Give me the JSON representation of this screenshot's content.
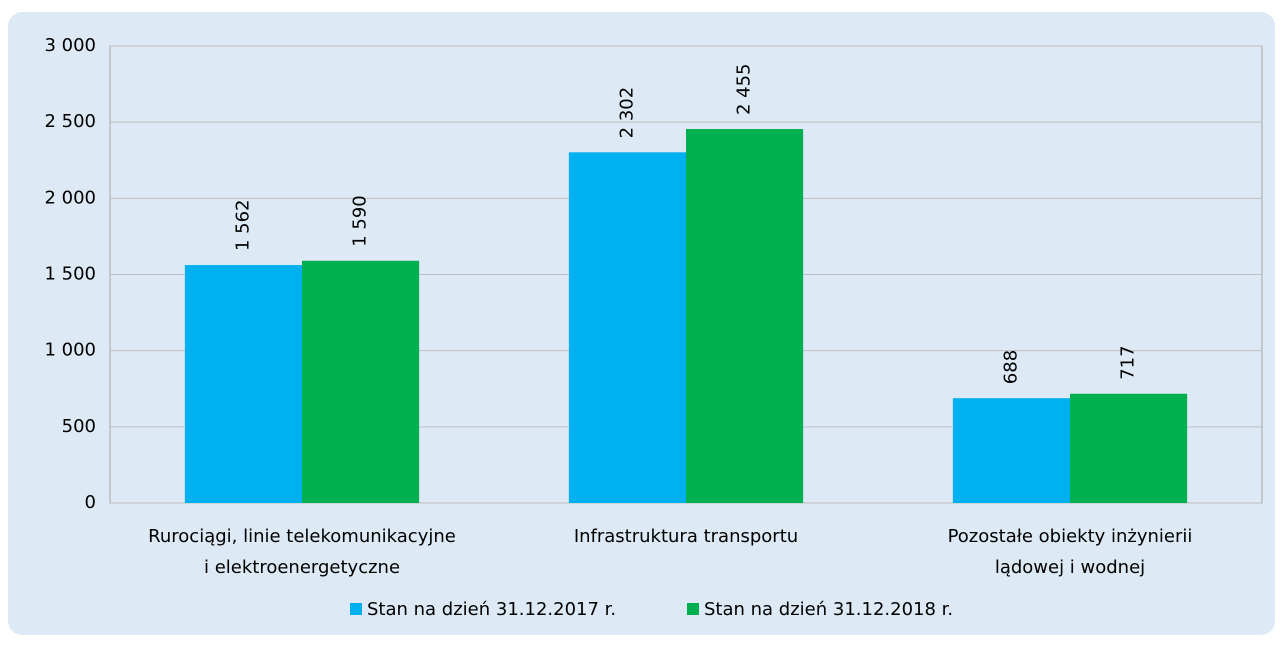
{
  "chart_data": {
    "type": "bar",
    "categories": [
      "Rurociągi, linie telekomunikacyjne\ni elektroenergetyczne",
      "Infrastruktura transportu",
      "Pozostałe obiekty inżynierii\nlądowej i wodnej"
    ],
    "series": [
      {
        "name": "Stan na dzień 31.12.2017 r.",
        "color": "#00b0f0",
        "values": [
          1562,
          2302,
          688
        ],
        "value_labels": [
          "1 562",
          "2 302",
          "688"
        ]
      },
      {
        "name": "Stan na dzień 31.12.2018 r.",
        "color": "#00b050",
        "values": [
          1590,
          2455,
          717
        ],
        "value_labels": [
          "1 590",
          "2 455",
          "717"
        ]
      }
    ],
    "ylim": [
      0,
      3000
    ],
    "yticks": [
      {
        "value": 0,
        "label": "0"
      },
      {
        "value": 500,
        "label": "500"
      },
      {
        "value": 1000,
        "label": "1 000"
      },
      {
        "value": 1500,
        "label": "1 500"
      },
      {
        "value": 2000,
        "label": "2 000"
      },
      {
        "value": 2500,
        "label": "2 500"
      },
      {
        "value": 3000,
        "label": "3 000"
      }
    ],
    "grid": true,
    "legend": "bottom"
  }
}
